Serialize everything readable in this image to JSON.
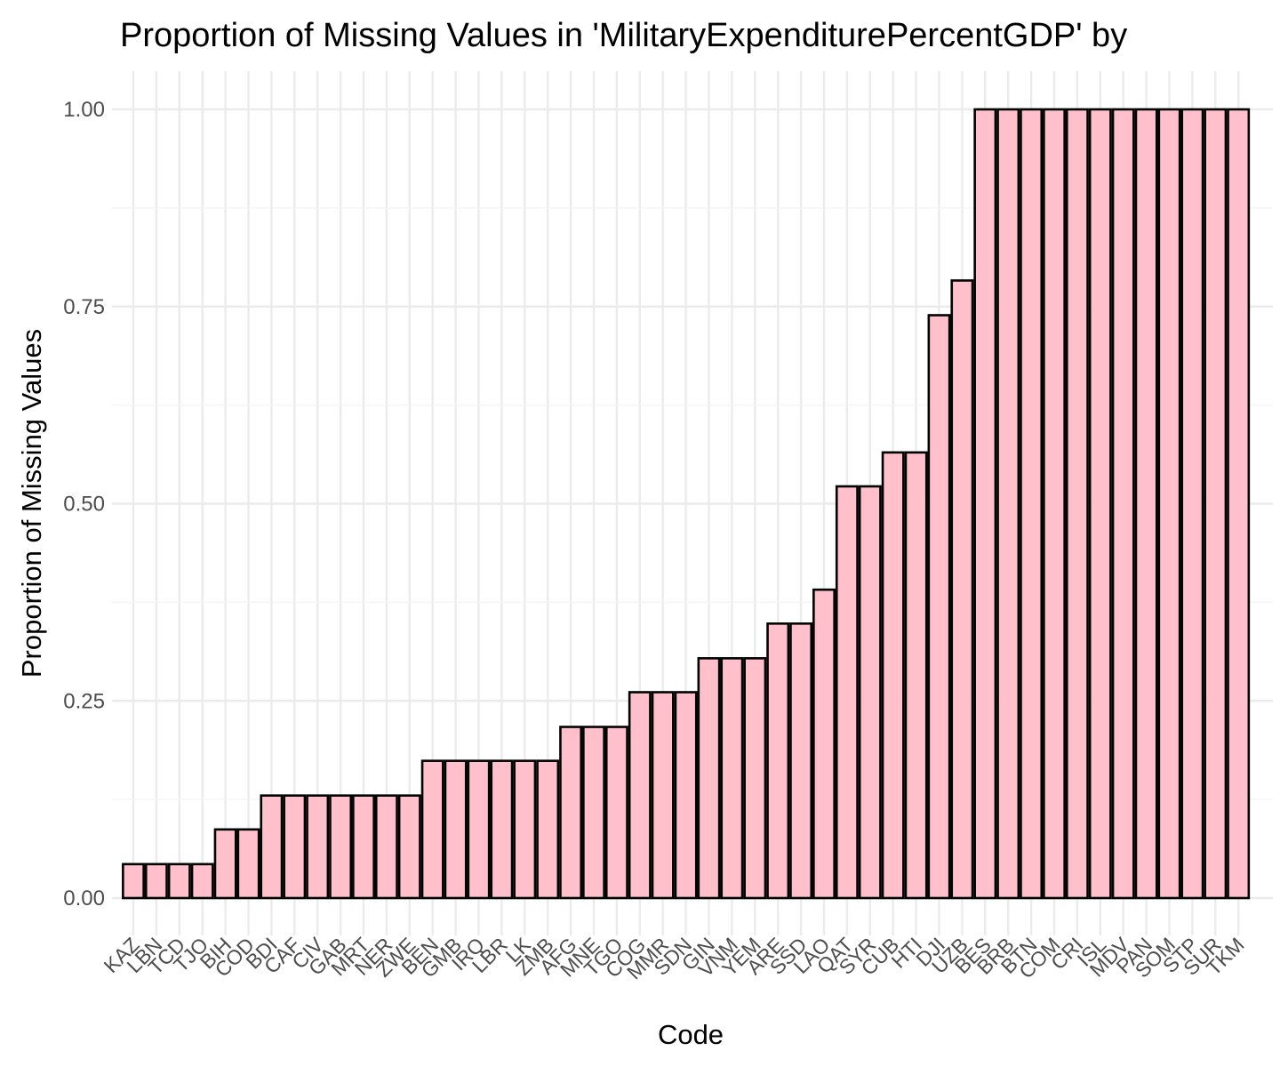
{
  "chart_data": {
    "type": "bar",
    "title": "Proportion of Missing Values in 'MilitaryExpenditurePercentGDP' by",
    "xlabel": "Code",
    "ylabel": "Proportion of Missing Values",
    "ylim": [
      0,
      1
    ],
    "yticks": [
      "0.00",
      "0.25",
      "0.50",
      "0.75",
      "1.00"
    ],
    "grid": true,
    "bar_fill": "#FFC0CB",
    "bar_outline": "#000000",
    "categories": [
      "KAZ",
      "LBN",
      "TCD",
      "TJO",
      "BIH",
      "COD",
      "BDI",
      "CAF",
      "CIV",
      "GAB",
      "MRT",
      "NER",
      "ZWE",
      "BEN",
      "GMB",
      "IRQ",
      "LBR",
      "LK",
      "ZMB",
      "AFG",
      "MNE",
      "TGO",
      "COG",
      "MMR",
      "SDN",
      "GIN",
      "VNM",
      "YEM",
      "ARE",
      "SSD",
      "LAO",
      "QAT",
      "SYR",
      "CUB",
      "HTI",
      "DJI",
      "UZB",
      "BES",
      "BRB",
      "BTN",
      "COM",
      "CRI",
      "ISL",
      "MDV",
      "PAN",
      "SOM",
      "STP",
      "SUR",
      "TKM"
    ],
    "values": [
      0.043,
      0.043,
      0.043,
      0.043,
      0.087,
      0.087,
      0.13,
      0.13,
      0.13,
      0.13,
      0.13,
      0.13,
      0.13,
      0.174,
      0.174,
      0.174,
      0.174,
      0.174,
      0.174,
      0.217,
      0.217,
      0.217,
      0.261,
      0.261,
      0.261,
      0.304,
      0.304,
      0.304,
      0.348,
      0.348,
      0.391,
      0.522,
      0.522,
      0.565,
      0.565,
      0.739,
      0.783,
      1.0,
      1.0,
      1.0,
      1.0,
      1.0,
      1.0,
      1.0,
      1.0,
      1.0,
      1.0,
      1.0,
      1.0
    ]
  }
}
